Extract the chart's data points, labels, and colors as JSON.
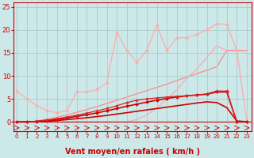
{
  "bg_color": "#cde8e8",
  "grid_color": "#aacccc",
  "xlabel": "Vent moyen/en rafales ( km/h )",
  "ylim": [
    -2,
    26
  ],
  "yticks": [
    0,
    5,
    10,
    15,
    20,
    25
  ],
  "xlim": [
    -0.3,
    23.5
  ],
  "x_ticks": [
    0,
    1,
    2,
    3,
    4,
    5,
    6,
    7,
    8,
    9,
    10,
    11,
    12,
    13,
    14,
    15,
    16,
    17,
    18,
    19,
    20,
    21,
    22,
    23
  ],
  "lines": [
    {
      "x": [
        0,
        1,
        2,
        3,
        4,
        5,
        6,
        7,
        8,
        9,
        10,
        11,
        12,
        13,
        14,
        15,
        16,
        17,
        18,
        19,
        20,
        21,
        22,
        23
      ],
      "y": [
        0,
        0,
        0,
        0,
        0,
        0,
        0,
        0,
        0,
        0,
        0,
        0,
        0.5,
        1.5,
        3.0,
        5.0,
        7.0,
        9.5,
        11.5,
        14.0,
        16.5,
        15.5,
        15.5,
        15.5
      ],
      "color": "#ffaaaa",
      "linewidth": 0.9,
      "marker": null,
      "markersize": 0,
      "zorder": 1
    },
    {
      "x": [
        0,
        1,
        2,
        3,
        4,
        5,
        6,
        7,
        8,
        9,
        10,
        11,
        12,
        13,
        14,
        15,
        16,
        17,
        18,
        19,
        20,
        21,
        22,
        23
      ],
      "y": [
        6.7,
        5.0,
        3.5,
        2.5,
        2.0,
        2.5,
        6.5,
        6.5,
        7.0,
        8.5,
        19.5,
        15.5,
        13.0,
        15.5,
        21.0,
        15.5,
        18.3,
        18.3,
        19.0,
        20.0,
        21.3,
        21.2,
        15.5,
        0.1
      ],
      "color": "#ffaaaa",
      "linewidth": 0.9,
      "marker": "D",
      "markersize": 2,
      "zorder": 2
    },
    {
      "x": [
        0,
        1,
        2,
        3,
        4,
        5,
        6,
        7,
        8,
        9,
        10,
        11,
        12,
        13,
        14,
        15,
        16,
        17,
        18,
        19,
        20,
        21,
        22,
        23
      ],
      "y": [
        0,
        0,
        0.2,
        0.6,
        1.0,
        1.5,
        2.1,
        2.7,
        3.3,
        4.0,
        4.7,
        5.4,
        6.1,
        6.8,
        7.5,
        8.2,
        9.0,
        9.7,
        10.5,
        11.2,
        12.0,
        15.5,
        15.5,
        15.5
      ],
      "color": "#ff8888",
      "linewidth": 0.9,
      "marker": null,
      "markersize": 0,
      "zorder": 1
    },
    {
      "x": [
        0,
        1,
        2,
        3,
        4,
        5,
        6,
        7,
        8,
        9,
        10,
        11,
        12,
        13,
        14,
        15,
        16,
        17,
        18,
        19,
        20,
        21,
        22,
        23
      ],
      "y": [
        0,
        0,
        0.05,
        0.15,
        0.3,
        0.5,
        0.7,
        0.9,
        1.15,
        1.4,
        1.7,
        2.0,
        2.3,
        2.6,
        2.9,
        3.2,
        3.5,
        3.8,
        4.1,
        4.35,
        4.2,
        3.1,
        0.2,
        0.05
      ],
      "color": "#cc0000",
      "linewidth": 1.2,
      "marker": null,
      "markersize": 0,
      "zorder": 3
    },
    {
      "x": [
        0,
        1,
        2,
        3,
        4,
        5,
        6,
        7,
        8,
        9,
        10,
        11,
        12,
        13,
        14,
        15,
        16,
        17,
        18,
        19,
        20,
        21,
        22,
        23
      ],
      "y": [
        0,
        0,
        0.1,
        0.3,
        0.55,
        0.85,
        1.2,
        1.55,
        1.95,
        2.4,
        2.9,
        3.4,
        3.85,
        4.3,
        4.7,
        5.1,
        5.4,
        5.65,
        5.85,
        6.0,
        6.5,
        6.5,
        0.0,
        0.0
      ],
      "color": "#cc0000",
      "linewidth": 1.2,
      "marker": "D",
      "markersize": 2,
      "zorder": 3
    },
    {
      "x": [
        0,
        1,
        2,
        3,
        4,
        5,
        6,
        7,
        8,
        9,
        10,
        11,
        12,
        13,
        14,
        15,
        16,
        17,
        18,
        19,
        20,
        21,
        22,
        23
      ],
      "y": [
        0,
        0,
        0.15,
        0.4,
        0.7,
        1.05,
        1.45,
        1.9,
        2.4,
        2.9,
        3.5,
        4.2,
        4.7,
        5.0,
        5.2,
        5.4,
        5.55,
        5.7,
        5.8,
        6.1,
        6.7,
        6.7,
        0.0,
        0.0
      ],
      "color": "#dd2222",
      "linewidth": 0.9,
      "marker": "*",
      "markersize": 3,
      "zorder": 3
    }
  ],
  "tick_color": "#cc0000",
  "spine_color": "#cc0000",
  "xlabel_color": "#cc0000",
  "xlabel_fontsize": 7,
  "tick_fontsize": 5,
  "ytick_fontsize": 6
}
